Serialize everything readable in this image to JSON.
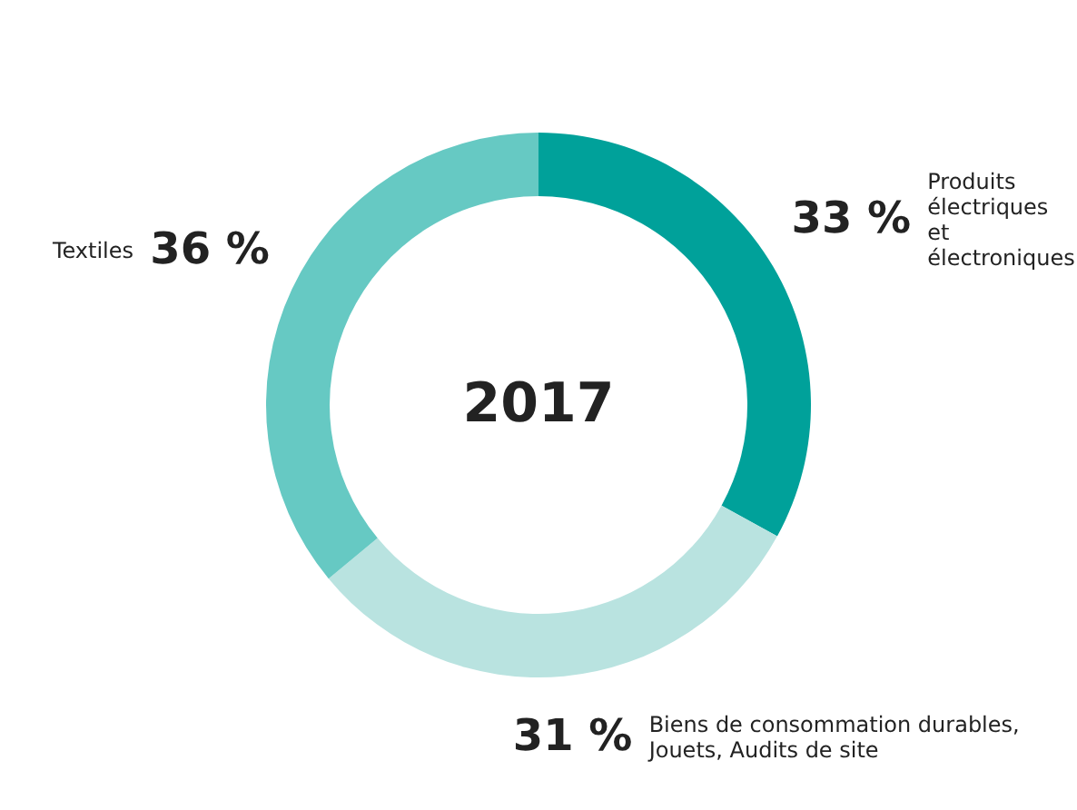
{
  "chart_data": {
    "type": "donut",
    "title": "2017",
    "categories": [
      "Produits électriques et électroniques",
      "Biens de consommation durables, Jouets, Audits de site",
      "Textiles"
    ],
    "values": [
      33,
      31,
      36
    ],
    "value_labels": [
      "33 %",
      "31 %",
      "36 %"
    ],
    "colors": [
      "#00a19a",
      "#b9e3e0",
      "#66c9c3"
    ]
  }
}
